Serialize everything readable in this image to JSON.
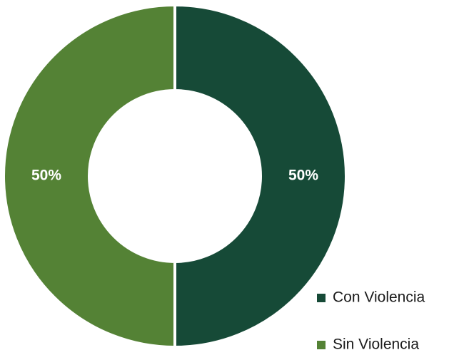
{
  "chart_data": {
    "type": "pie",
    "variant": "donut",
    "title": "",
    "series": [
      {
        "name": "Con Violencia",
        "value": 50,
        "label": "50%",
        "color": "#164a37"
      },
      {
        "name": "Sin Violencia",
        "value": 50,
        "label": "50%",
        "color": "#548235"
      }
    ],
    "legend_position": "bottom-right"
  }
}
